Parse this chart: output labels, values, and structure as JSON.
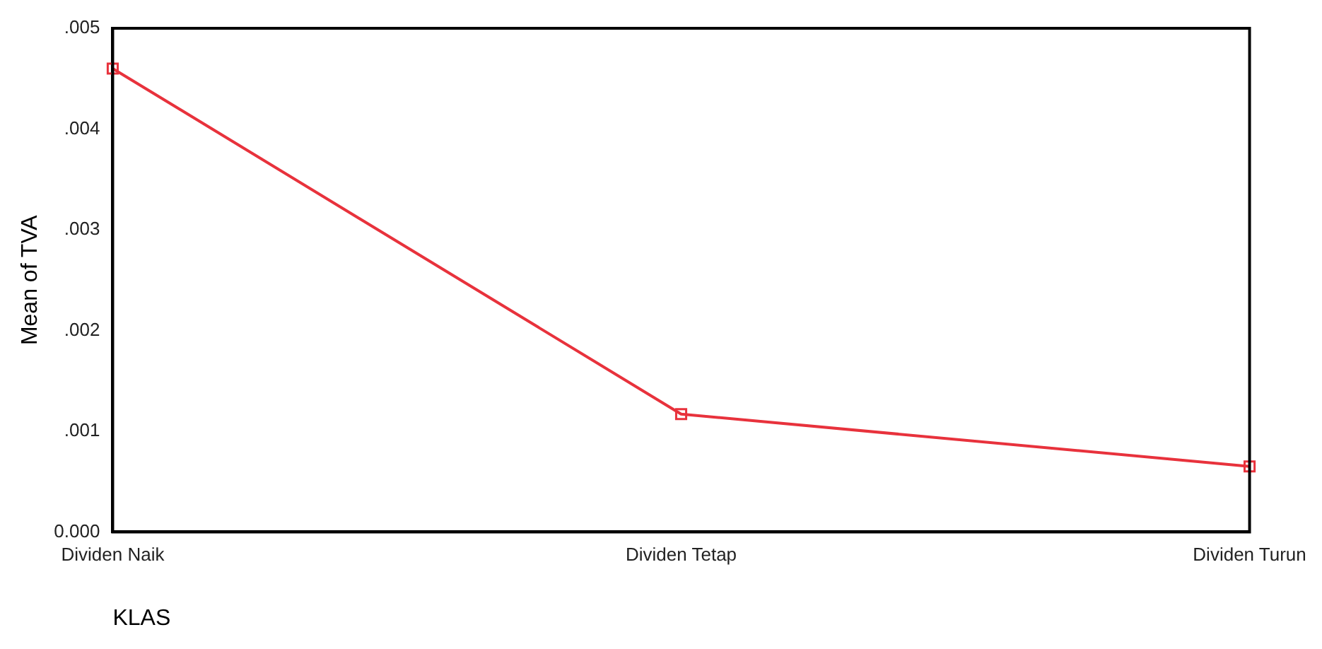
{
  "chart_data": {
    "type": "line",
    "xlabel": "KLAS",
    "ylabel": "Mean of TVA",
    "categories": [
      "Dividen Naik",
      "Dividen Tetap",
      "Dividen Turun"
    ],
    "series": [
      {
        "color": "#e8323c",
        "values": [
          0.0046,
          0.00117,
          0.00065
        ]
      }
    ],
    "ylim": [
      0,
      0.005
    ],
    "yticks": [
      {
        "value": 0,
        "label": "0.000"
      },
      {
        "value": 0.001,
        "label": ".001"
      },
      {
        "value": 0.002,
        "label": ".002"
      },
      {
        "value": 0.003,
        "label": ".003"
      },
      {
        "value": 0.004,
        "label": ".004"
      },
      {
        "value": 0.005,
        "label": ".005"
      }
    ],
    "grid": false,
    "legend": false,
    "marker": "square",
    "line_style": "solid"
  }
}
